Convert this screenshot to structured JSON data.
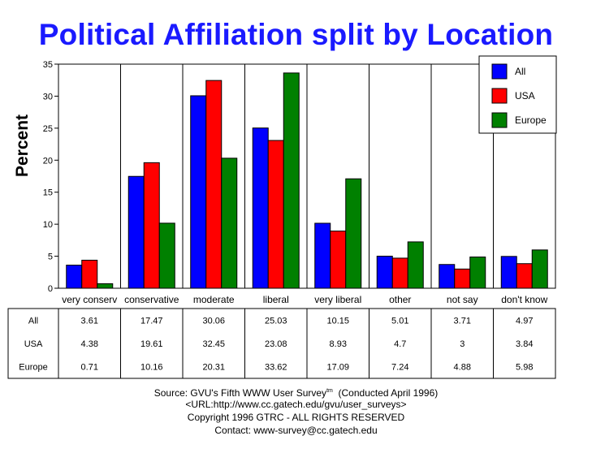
{
  "chart_data": {
    "type": "bar",
    "title": "Political Affiliation split by Location",
    "xlabel": "",
    "ylabel": "Percent",
    "ylim": [
      0,
      35
    ],
    "yticks": [
      0,
      5,
      10,
      15,
      20,
      25,
      30,
      35
    ],
    "grid": false,
    "legend_position": "top-right",
    "categories": [
      "very conserv",
      "conservative",
      "moderate",
      "liberal",
      "very liberal",
      "other",
      "not say",
      "don't know"
    ],
    "series": [
      {
        "name": "All",
        "color": "#0000ff",
        "values": [
          3.61,
          17.47,
          30.06,
          25.03,
          10.15,
          5.01,
          3.71,
          4.97
        ]
      },
      {
        "name": "USA",
        "color": "#ff0000",
        "values": [
          4.38,
          19.61,
          32.45,
          23.08,
          8.93,
          4.7,
          3,
          3.84
        ]
      },
      {
        "name": "Europe",
        "color": "#008000",
        "values": [
          0.71,
          10.16,
          20.31,
          33.62,
          17.09,
          7.24,
          4.88,
          5.98
        ]
      }
    ],
    "table": {
      "rows": [
        {
          "label": "All",
          "values": [
            "3.61",
            "17.47",
            "30.06",
            "25.03",
            "10.15",
            "5.01",
            "3.71",
            "4.97"
          ]
        },
        {
          "label": "USA",
          "values": [
            "4.38",
            "19.61",
            "32.45",
            "23.08",
            "8.93",
            "4.7",
            "3",
            "3.84"
          ]
        },
        {
          "label": "Europe",
          "values": [
            "0.71",
            "10.16",
            "20.31",
            "33.62",
            "17.09",
            "7.24",
            "4.88",
            "5.98"
          ]
        }
      ]
    }
  },
  "footer": {
    "source_prefix": "Source: GVU's Fifth WWW User Survey",
    "source_sup": "tm",
    "source_suffix": "  (Conducted April 1996)",
    "url": "<URL:http://www.cc.gatech.edu/gvu/user_surveys>",
    "copyright": "Copyright 1996 GTRC -  ALL RIGHTS RESERVED",
    "contact": "Contact: www-survey@cc.gatech.edu"
  }
}
